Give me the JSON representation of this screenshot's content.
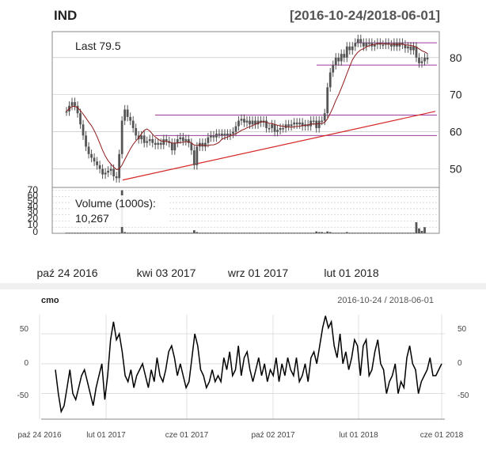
{
  "top_panel": {
    "symbol": "IND",
    "date_range": "[2016-10-24/2018-06-01]",
    "last_label": "Last 79.5",
    "volume_label": "Volume (1000s):",
    "volume_value": "10,267",
    "price_axis_ticks": [
      "80",
      "70",
      "60",
      "50"
    ],
    "volume_axis_ticks": [
      "70",
      "60",
      "50",
      "40",
      "30",
      "20",
      "10",
      "0"
    ],
    "x_labels": [
      "paź 24 2016",
      "kwi 03 2017",
      "wrz 01 2017",
      "lut 01 2018"
    ]
  },
  "bottom_panel": {
    "title": "cmo",
    "date_range": "2016-10-24 / 2018-06-01",
    "y_ticks": [
      "50",
      "0",
      "-50"
    ],
    "x_labels": [
      "paź 24 2016",
      "lut 01 2017",
      "cze 01 2017",
      "paź 02 2017",
      "lut 01 2018",
      "cze 01 2018"
    ]
  },
  "colors": {
    "candle": "#555555",
    "ma_line": "#8b1a1a",
    "trend_line": "#d62728",
    "level_line": "#9b3b9b",
    "volume_bar": "#555555",
    "cmo_line": "#000000",
    "grid": "#bbbbbb"
  },
  "chart_data": [
    {
      "type": "line",
      "subtype": "candlestick-with-volume",
      "title": "IND",
      "date_range": "2016-10-24/2018-06-01",
      "series": [
        {
          "values": [
            65.5,
            67,
            68,
            67,
            65,
            62,
            59,
            56,
            54,
            53,
            52,
            51,
            50,
            48.5,
            49,
            49.5,
            50,
            48,
            47.5,
            54,
            63,
            66,
            64,
            63,
            61,
            59,
            58,
            59,
            57,
            57.5,
            58,
            57,
            56.5,
            57,
            56.5,
            58,
            57.5,
            57,
            55,
            57,
            58,
            58.5,
            57.5,
            58,
            57,
            55,
            51,
            56,
            57,
            56,
            57,
            58.5,
            59,
            58.5,
            59.5,
            59.5,
            59,
            59.5,
            59,
            59.5,
            60,
            61.5,
            63,
            63.5,
            62.5,
            63,
            62,
            63,
            62,
            63,
            62.5,
            63,
            61,
            61,
            62,
            60,
            60.5,
            61,
            61,
            62,
            61.5,
            62,
            62.5,
            62,
            62.5,
            61.5,
            62,
            61.5,
            63,
            63,
            61,
            63,
            63,
            65,
            72,
            76,
            78,
            80,
            79,
            81,
            80,
            83,
            82,
            83,
            84,
            85,
            84,
            83,
            84,
            84,
            83,
            83.5,
            84,
            83.5,
            83.5,
            84,
            83.5,
            83,
            84,
            83,
            84,
            83.5,
            82.5,
            83,
            82,
            83,
            80,
            78.5,
            79,
            80,
            79.5
          ]
        },
        {
          "name": "Volume (1000s)",
          "values": [
            1,
            1,
            1,
            1,
            1,
            1,
            1,
            1,
            1,
            1,
            1,
            1,
            1,
            1,
            1,
            1,
            1,
            1,
            1,
            1,
            70,
            2,
            1,
            1,
            1,
            1,
            1,
            1,
            1,
            1,
            1,
            1,
            1,
            1,
            1,
            1,
            1,
            1,
            1,
            1,
            1,
            1,
            1,
            1,
            1,
            1,
            5,
            2,
            1,
            1,
            1,
            1,
            1,
            1,
            1,
            1,
            1,
            1,
            1,
            1,
            1,
            1,
            1,
            1,
            1,
            1,
            1,
            1,
            1,
            1,
            1,
            1,
            1,
            1,
            1,
            1,
            1,
            1,
            1,
            1,
            1,
            1,
            1,
            1,
            1,
            1,
            1,
            1,
            1,
            1,
            3,
            2,
            2,
            1,
            3,
            2,
            1,
            1,
            1,
            1,
            1,
            2,
            1,
            1,
            1,
            1,
            1,
            1,
            1,
            1,
            1,
            1,
            1,
            1,
            1,
            1,
            1,
            1,
            1,
            1,
            1,
            1,
            1,
            1,
            1,
            1,
            18,
            8,
            4,
            10
          ]
        }
      ],
      "horizontal_levels": [
        84,
        78,
        64.5,
        59
      ],
      "trend_line": {
        "from": [
          0,
          47
        ],
        "to": [
          131,
          65.5
        ]
      },
      "ylim": [
        45,
        87
      ],
      "volume_ylim": [
        0,
        72
      ]
    },
    {
      "type": "line",
      "title": "cmo",
      "date_range": "2016-10-24 / 2018-06-01",
      "series": [
        {
          "values": [
            -10,
            -50,
            -80,
            -70,
            -40,
            -10,
            -50,
            -60,
            -40,
            -20,
            -10,
            -30,
            -50,
            -70,
            -40,
            -20,
            0,
            -60,
            -20,
            40,
            70,
            40,
            50,
            20,
            -20,
            -30,
            -10,
            -40,
            -20,
            -10,
            0,
            -20,
            -40,
            -10,
            -30,
            10,
            -20,
            -30,
            -10,
            20,
            30,
            10,
            -20,
            0,
            -20,
            -40,
            -30,
            10,
            50,
            30,
            -10,
            -20,
            -40,
            -30,
            -10,
            -30,
            -20,
            -30,
            10,
            -10,
            20,
            -20,
            -10,
            30,
            -20,
            10,
            20,
            -10,
            -30,
            -10,
            10,
            -20,
            0,
            -30,
            -10,
            -20,
            10,
            -30,
            0,
            -20,
            10,
            -10,
            -20,
            10,
            -30,
            -20,
            0,
            -30,
            10,
            20,
            0,
            30,
            60,
            80,
            60,
            70,
            30,
            10,
            50,
            0,
            20,
            -10,
            10,
            40,
            30,
            -20,
            30,
            40,
            -20,
            -10,
            20,
            40,
            0,
            -10,
            -50,
            -30,
            -20,
            0,
            -50,
            -30,
            -40,
            10,
            30,
            0,
            -10,
            -50,
            -30,
            -20,
            -10,
            10,
            -20,
            -20,
            -10,
            0
          ]
        }
      ],
      "ylim": [
        -90,
        95
      ]
    }
  ]
}
